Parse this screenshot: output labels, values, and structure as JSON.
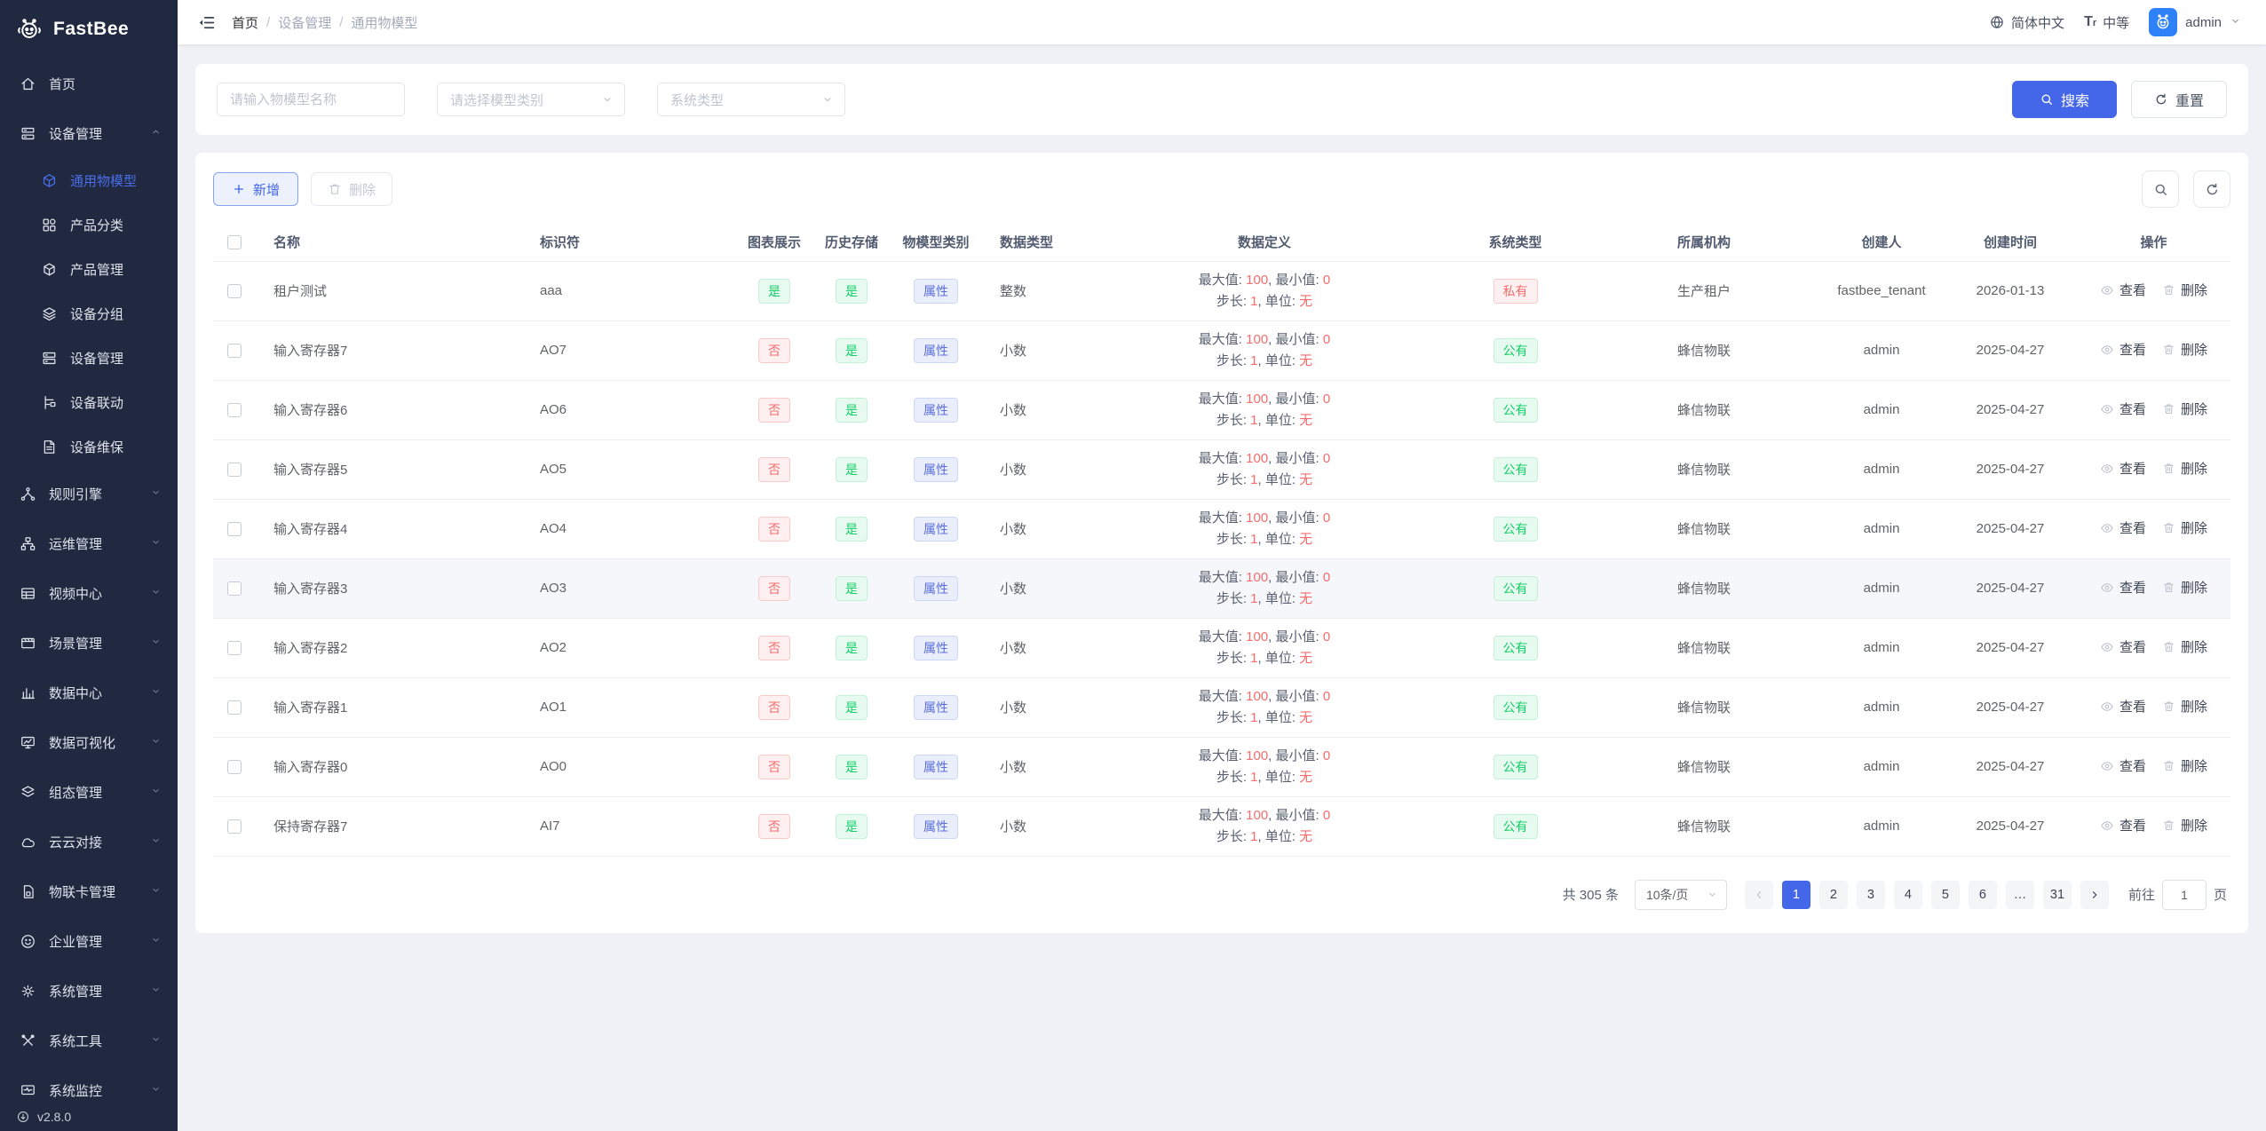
{
  "brand": {
    "name": "FastBee",
    "version": "v2.8.0"
  },
  "topbar": {
    "breadcrumb": [
      "首页",
      "设备管理",
      "通用物模型"
    ],
    "language": "简体中文",
    "font_size": "中等",
    "user": "admin"
  },
  "sidebar": {
    "items": [
      {
        "label": "首页",
        "icon": "home-icon",
        "type": "item"
      },
      {
        "label": "设备管理",
        "icon": "device-icon",
        "type": "group",
        "expanded": true,
        "children": [
          {
            "label": "通用物模型",
            "icon": "cube-icon",
            "active": true
          },
          {
            "label": "产品分类",
            "icon": "grid-icon"
          },
          {
            "label": "产品管理",
            "icon": "box-icon"
          },
          {
            "label": "设备分组",
            "icon": "layers-icon"
          },
          {
            "label": "设备管理",
            "icon": "server-icon"
          },
          {
            "label": "设备联动",
            "icon": "link-icon"
          },
          {
            "label": "设备维保",
            "icon": "doc-icon"
          }
        ]
      },
      {
        "label": "规则引擎",
        "icon": "share-icon",
        "type": "group"
      },
      {
        "label": "运维管理",
        "icon": "ops-icon",
        "type": "group"
      },
      {
        "label": "视频中心",
        "icon": "video-icon",
        "type": "group"
      },
      {
        "label": "场景管理",
        "icon": "film-icon",
        "type": "group"
      },
      {
        "label": "数据中心",
        "icon": "chart-icon",
        "type": "group"
      },
      {
        "label": "数据可视化",
        "icon": "monitor-icon",
        "type": "group"
      },
      {
        "label": "组态管理",
        "icon": "stack-icon",
        "type": "group"
      },
      {
        "label": "云云对接",
        "icon": "cloud-icon",
        "type": "group"
      },
      {
        "label": "物联卡管理",
        "icon": "sim-icon",
        "type": "group"
      },
      {
        "label": "企业管理",
        "icon": "enterprise-icon",
        "type": "group"
      },
      {
        "label": "系统管理",
        "icon": "gear-icon",
        "type": "group"
      },
      {
        "label": "系统工具",
        "icon": "tools-icon",
        "type": "group"
      },
      {
        "label": "系统监控",
        "icon": "sysmon-icon",
        "type": "group"
      }
    ]
  },
  "filters": {
    "name_placeholder": "请输入物模型名称",
    "category_placeholder": "请选择模型类别",
    "system_placeholder": "系统类型",
    "search_label": "搜索",
    "reset_label": "重置"
  },
  "toolbar": {
    "add_label": "新增",
    "delete_label": "删除"
  },
  "table": {
    "columns": [
      "名称",
      "标识符",
      "图表展示",
      "历史存储",
      "物模型类别",
      "数据类型",
      "数据定义",
      "系统类型",
      "所属机构",
      "创建人",
      "创建时间",
      "操作"
    ],
    "def_labels": {
      "max": "最大值",
      "min": "最小值",
      "step": "步长",
      "unit": "单位"
    },
    "action_view": "查看",
    "action_delete": "删除",
    "rows": [
      {
        "name": "租户测试",
        "identifier": "aaa",
        "chart": "是",
        "history": "是",
        "category": "属性",
        "datatype": "整数",
        "def": {
          "max": "100",
          "min": "0",
          "step": "1",
          "unit": "无"
        },
        "system": "私有",
        "org": "生产租户",
        "creator": "fastbee_tenant",
        "created": "2026-01-13"
      },
      {
        "name": "输入寄存器7",
        "identifier": "AO7",
        "chart": "否",
        "history": "是",
        "category": "属性",
        "datatype": "小数",
        "def": {
          "max": "100",
          "min": "0",
          "step": "1",
          "unit": "无"
        },
        "system": "公有",
        "org": "蜂信物联",
        "creator": "admin",
        "created": "2025-04-27"
      },
      {
        "name": "输入寄存器6",
        "identifier": "AO6",
        "chart": "否",
        "history": "是",
        "category": "属性",
        "datatype": "小数",
        "def": {
          "max": "100",
          "min": "0",
          "step": "1",
          "unit": "无"
        },
        "system": "公有",
        "org": "蜂信物联",
        "creator": "admin",
        "created": "2025-04-27"
      },
      {
        "name": "输入寄存器5",
        "identifier": "AO5",
        "chart": "否",
        "history": "是",
        "category": "属性",
        "datatype": "小数",
        "def": {
          "max": "100",
          "min": "0",
          "step": "1",
          "unit": "无"
        },
        "system": "公有",
        "org": "蜂信物联",
        "creator": "admin",
        "created": "2025-04-27"
      },
      {
        "name": "输入寄存器4",
        "identifier": "AO4",
        "chart": "否",
        "history": "是",
        "category": "属性",
        "datatype": "小数",
        "def": {
          "max": "100",
          "min": "0",
          "step": "1",
          "unit": "无"
        },
        "system": "公有",
        "org": "蜂信物联",
        "creator": "admin",
        "created": "2025-04-27"
      },
      {
        "name": "输入寄存器3",
        "identifier": "AO3",
        "chart": "否",
        "history": "是",
        "category": "属性",
        "datatype": "小数",
        "def": {
          "max": "100",
          "min": "0",
          "step": "1",
          "unit": "无"
        },
        "system": "公有",
        "org": "蜂信物联",
        "creator": "admin",
        "created": "2025-04-27",
        "highlighted": true
      },
      {
        "name": "输入寄存器2",
        "identifier": "AO2",
        "chart": "否",
        "history": "是",
        "category": "属性",
        "datatype": "小数",
        "def": {
          "max": "100",
          "min": "0",
          "step": "1",
          "unit": "无"
        },
        "system": "公有",
        "org": "蜂信物联",
        "creator": "admin",
        "created": "2025-04-27"
      },
      {
        "name": "输入寄存器1",
        "identifier": "AO1",
        "chart": "否",
        "history": "是",
        "category": "属性",
        "datatype": "小数",
        "def": {
          "max": "100",
          "min": "0",
          "step": "1",
          "unit": "无"
        },
        "system": "公有",
        "org": "蜂信物联",
        "creator": "admin",
        "created": "2025-04-27"
      },
      {
        "name": "输入寄存器0",
        "identifier": "AO0",
        "chart": "否",
        "history": "是",
        "category": "属性",
        "datatype": "小数",
        "def": {
          "max": "100",
          "min": "0",
          "step": "1",
          "unit": "无"
        },
        "system": "公有",
        "org": "蜂信物联",
        "creator": "admin",
        "created": "2025-04-27"
      },
      {
        "name": "保持寄存器7",
        "identifier": "AI7",
        "chart": "否",
        "history": "是",
        "category": "属性",
        "datatype": "小数",
        "def": {
          "max": "100",
          "min": "0",
          "step": "1",
          "unit": "无"
        },
        "system": "公有",
        "org": "蜂信物联",
        "creator": "admin",
        "created": "2025-04-27"
      }
    ]
  },
  "pagination": {
    "total_label": "共 305 条",
    "page_size": "10条/页",
    "pages": [
      "1",
      "2",
      "3",
      "4",
      "5",
      "6",
      "…",
      "31"
    ],
    "active_page": "1",
    "goto_label": "前往",
    "goto_value": "1",
    "page_unit": "页"
  },
  "colors": {
    "primary": "#4466e8",
    "sidebar_bg": "#202940",
    "tag_green": "#13ce66",
    "tag_red": "#f56c6c",
    "tag_indigo": "#5a6fd8",
    "avatar_bg": "#2f81f7"
  }
}
